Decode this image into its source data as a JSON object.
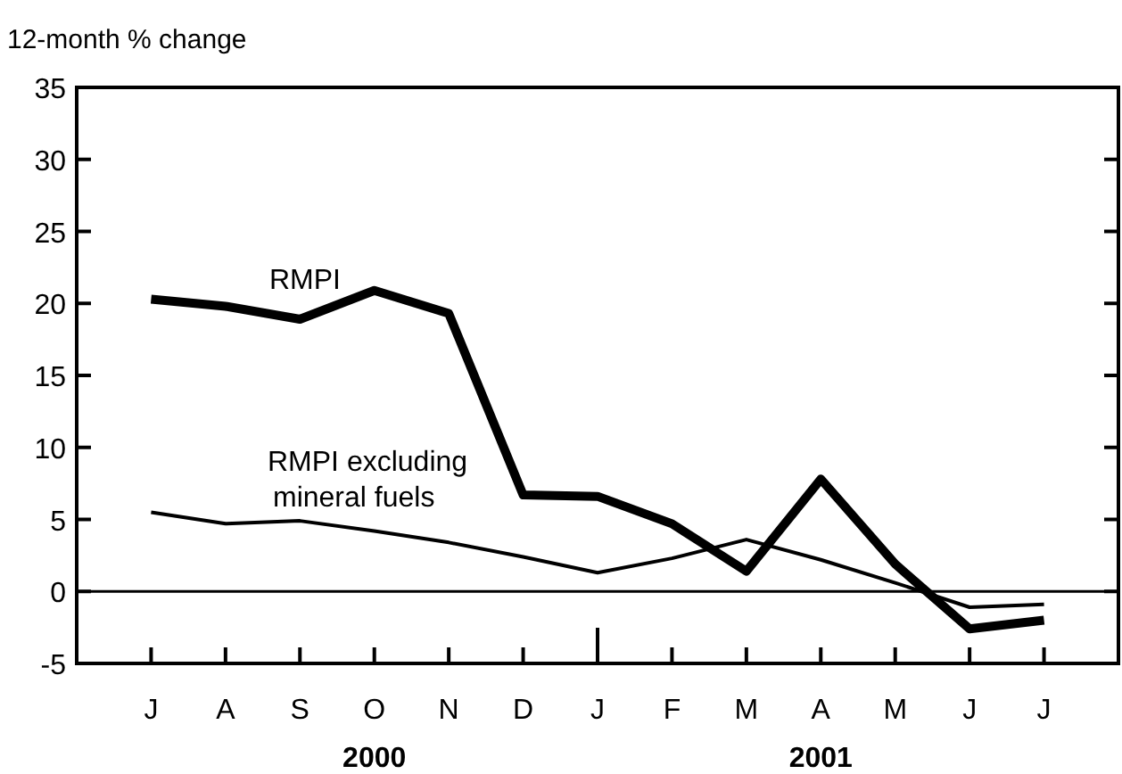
{
  "chart_data": {
    "type": "line",
    "ylabel": "12-month % change",
    "categories": [
      "J",
      "A",
      "S",
      "O",
      "N",
      "D",
      "J",
      "F",
      "M",
      "A",
      "M",
      "J",
      "J"
    ],
    "series": [
      {
        "name": "RMPI",
        "color": "#000000",
        "values": [
          20.3,
          19.8,
          18.9,
          20.9,
          19.3,
          6.7,
          6.6,
          4.7,
          1.4,
          7.8,
          1.9,
          -2.6,
          -2.0
        ]
      },
      {
        "name": "RMPI excluding mineral fuels",
        "color": "#000000",
        "values": [
          5.5,
          4.7,
          4.9,
          4.2,
          3.4,
          2.4,
          1.3,
          2.3,
          3.6,
          2.2,
          0.6,
          -1.1,
          -0.9
        ]
      }
    ],
    "ylim": [
      -5,
      35
    ],
    "yticks": [
      -5,
      0,
      5,
      10,
      15,
      20,
      25,
      30,
      35
    ],
    "ref_lines": [
      {
        "axis": "y",
        "value": 0
      }
    ],
    "annotations": [
      "2000",
      "2001"
    ],
    "grid": false,
    "marker": "none",
    "line_style": "solid"
  }
}
